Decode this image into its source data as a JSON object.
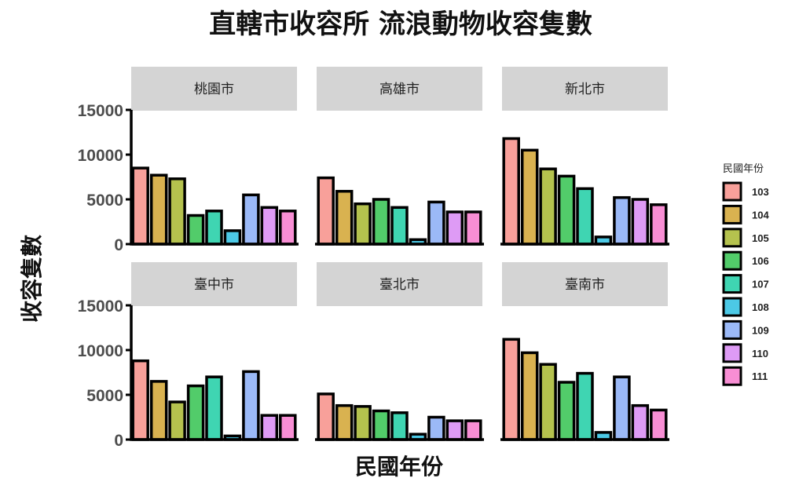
{
  "chart_data": {
    "type": "bar",
    "title": "直轄市收容所 流浪動物收容隻數",
    "xlabel": "民國年份",
    "ylabel": "收容隻數",
    "ylim": [
      0,
      15000
    ],
    "yticks": [
      0,
      5000,
      10000,
      15000
    ],
    "categories": [
      "103",
      "104",
      "105",
      "106",
      "107",
      "108",
      "109",
      "110",
      "111"
    ],
    "legend": {
      "title": "民國年份",
      "placement": "right"
    },
    "colors": [
      "#F8A09A",
      "#D9B250",
      "#B5C24E",
      "#52CC6A",
      "#3FD5B2",
      "#4CC9E6",
      "#9BB9F7",
      "#DE9BF5",
      "#F88ED4"
    ],
    "grid": false,
    "facets": [
      {
        "name": "桃園市",
        "values": [
          8500,
          7700,
          7300,
          3200,
          3700,
          1500,
          5500,
          4100,
          3700
        ]
      },
      {
        "name": "高雄市",
        "values": [
          7400,
          5900,
          4500,
          5000,
          4100,
          500,
          4700,
          3600,
          3600
        ]
      },
      {
        "name": "新北市",
        "values": [
          11800,
          10500,
          8400,
          7600,
          6200,
          800,
          5200,
          5000,
          4400
        ]
      },
      {
        "name": "臺中市",
        "values": [
          8800,
          6500,
          4200,
          6000,
          7000,
          400,
          7600,
          2700,
          2700
        ]
      },
      {
        "name": "臺北市",
        "values": [
          5100,
          3800,
          3700,
          3200,
          3000,
          600,
          2500,
          2100,
          2100
        ]
      },
      {
        "name": "臺南市",
        "values": [
          11200,
          9700,
          8400,
          6400,
          7400,
          800,
          7000,
          3800,
          3300
        ]
      }
    ]
  }
}
